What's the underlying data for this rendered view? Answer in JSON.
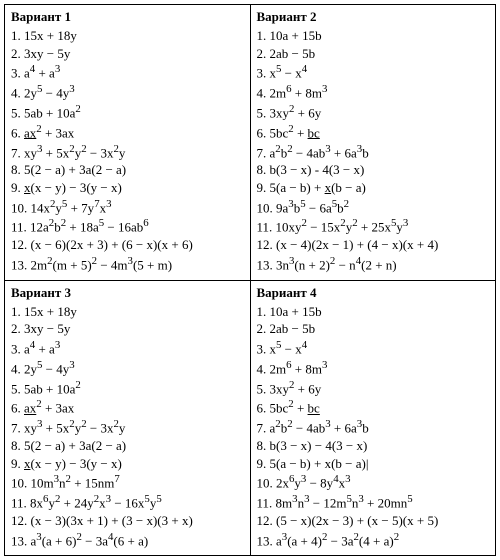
{
  "variants": [
    {
      "title": "Вариант 1",
      "items": [
        {
          "n": "1",
          "html": "15x + 18y"
        },
        {
          "n": "2",
          "html": "3xy − 5y"
        },
        {
          "n": "3",
          "html": "a<sup>4</sup> + a<sup>3</sup>"
        },
        {
          "n": "4",
          "html": "2y<sup>5</sup> − 4y<sup>3</sup>"
        },
        {
          "n": "5",
          "html": "5ab + 10a<sup>2</sup>"
        },
        {
          "n": "6",
          "html": "<span class='u'>ax</span><sup>2</sup> + 3ax"
        },
        {
          "n": "7",
          "html": "xy<sup>3</sup> + 5x<sup>2</sup>y<sup>2</sup> − 3x<sup>2</sup>y"
        },
        {
          "n": "8",
          "html": "5(2 − a) + 3a(2 − a)"
        },
        {
          "n": "9",
          "html": "<span class='u'>x</span>(x − y) − 3(y − x)"
        },
        {
          "n": "10",
          "html": "14x<sup>2</sup>y<sup>5</sup> + 7y<sup>7</sup>x<sup>3</sup>"
        },
        {
          "n": "11",
          "html": "12a<sup>2</sup>b<sup>2</sup> + 18a<sup>5</sup> − 16ab<sup>6</sup>"
        },
        {
          "n": "12",
          "html": "(x − 6)(2x + 3) + (6 − x)(x + 6)"
        },
        {
          "n": "13",
          "html": "2m<sup>2</sup>(m + 5)<sup>2</sup> − 4m<sup>3</sup>(5 + m)"
        }
      ]
    },
    {
      "title": "Вариант 2",
      "items": [
        {
          "n": "1",
          "html": "10a + 15b"
        },
        {
          "n": "2",
          "html": "2ab − 5b"
        },
        {
          "n": "3",
          "html": "x<sup>5</sup> − x<sup>4</sup>"
        },
        {
          "n": "4",
          "html": "2m<sup>6</sup> + 8m<sup>3</sup>"
        },
        {
          "n": "5",
          "html": "3xy<sup>2</sup> + 6y"
        },
        {
          "n": "6",
          "html": "5bc<sup>2</sup> + <span class='u'>bc</span>"
        },
        {
          "n": "7",
          "html": "a<sup>2</sup>b<sup>2</sup> − 4ab<sup>3</sup> + 6a<sup>3</sup>b"
        },
        {
          "n": "8",
          "html": "b(3 − x) - 4(3 − x)"
        },
        {
          "n": "9",
          "html": "5(a − b) + <span class='u'>x</span>(b − a)"
        },
        {
          "n": "10",
          "html": "9a<sup>3</sup>b<sup>5</sup> − 6a<sup>5</sup>b<sup>2</sup>"
        },
        {
          "n": "11",
          "html": "10xy<sup>2</sup> − 15x<sup>2</sup>y<sup>2</sup> + 25x<sup>5</sup>y<sup>3</sup>"
        },
        {
          "n": "12",
          "html": "(x − 4)(2x − 1) + (4 − x)(x + 4)"
        },
        {
          "n": "13",
          "html": "3n<sup>3</sup>(n + 2)<sup>2</sup> − n<sup>4</sup>(2 + n)"
        }
      ]
    },
    {
      "title": "Вариант 3",
      "items": [
        {
          "n": "1",
          "html": "15x + 18y"
        },
        {
          "n": "2",
          "html": "3xy − 5y"
        },
        {
          "n": "3",
          "html": "a<sup>4</sup> + a<sup>3</sup>"
        },
        {
          "n": "4",
          "html": "2y<sup>5</sup> − 4y<sup>3</sup>"
        },
        {
          "n": "5",
          "html": "5ab + 10a<sup>2</sup>"
        },
        {
          "n": "6",
          "html": "<span class='u'>ax</span><sup>2</sup> + 3ax"
        },
        {
          "n": "7",
          "html": "xy<sup>3</sup> + 5x<sup>2</sup>y<sup>2</sup> − 3x<sup>2</sup>y"
        },
        {
          "n": "8",
          "html": "5(2 − a) + 3a(2 − a)"
        },
        {
          "n": "9",
          "html": "<span class='u'>x</span>(x − y) − 3(y − x)"
        },
        {
          "n": "10",
          "html": "10m<sup>3</sup>n<sup>2</sup> + 15nm<sup>7</sup>"
        },
        {
          "n": "11",
          "html": "8x<sup>6</sup>y<sup>2</sup> + 24y<sup>2</sup>x<sup>3</sup> − 16x<sup>5</sup>y<sup>5</sup>"
        },
        {
          "n": "12",
          "html": "(x − 3)(3x + 1) + (3 − x)(3 + x)"
        },
        {
          "n": "13",
          "html": "a<sup>3</sup>(a + 6)<sup>2</sup> − 3a<sup>4</sup>(6 + a)"
        }
      ]
    },
    {
      "title": "Вариант 4",
      "items": [
        {
          "n": "1",
          "html": "10a + 15b"
        },
        {
          "n": "2",
          "html": "2ab − 5b"
        },
        {
          "n": "3",
          "html": "x<sup>5</sup> − x<sup>4</sup>"
        },
        {
          "n": "4",
          "html": "2m<sup>6</sup> + 8m<sup>3</sup>"
        },
        {
          "n": "5",
          "html": "3xy<sup>2</sup> + 6y"
        },
        {
          "n": "6",
          "html": "5bc<sup>2</sup> + <span class='u'>bc</span>"
        },
        {
          "n": "7",
          "html": "a<sup>2</sup>b<sup>2</sup> − 4ab<sup>3</sup> + 6a<sup>3</sup>b"
        },
        {
          "n": "8",
          "html": "b(3 − x) − 4(3 − x)"
        },
        {
          "n": "9",
          "html": "5(a − b) + x(b − a)|"
        },
        {
          "n": "10",
          "html": "2x<sup>6</sup>y<sup>3</sup> − 8y<sup>4</sup>x<sup>3</sup>"
        },
        {
          "n": "11",
          "html": "8m<sup>3</sup>n<sup>3</sup> − 12m<sup>5</sup>n<sup>3</sup> + 20mn<sup>5</sup>"
        },
        {
          "n": "12",
          "html": "(5 − x)(2x − 3) + (x − 5)(x + 5)"
        },
        {
          "n": "13",
          "html": "a<sup>3</sup>(a + 4)<sup>2</sup> − 3a<sup>2</sup>(4 + a)<sup>2</sup>"
        }
      ]
    }
  ]
}
